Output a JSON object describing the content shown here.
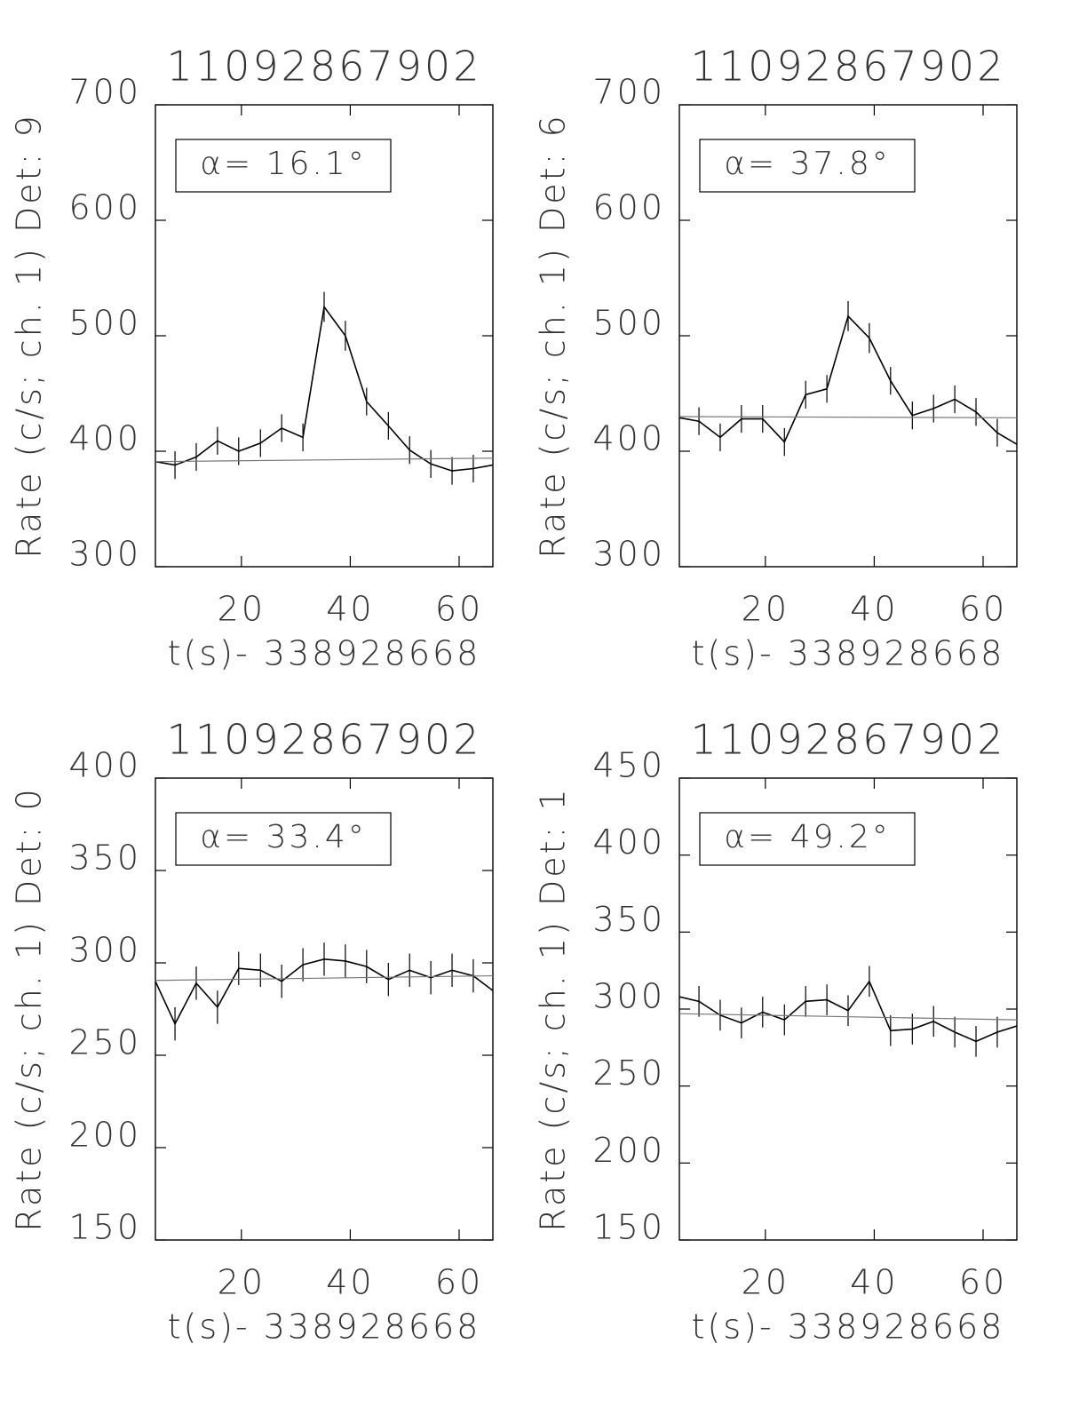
{
  "chart_data": [
    {
      "type": "line",
      "title": "11092867902",
      "y_label": "Rate (c/s; ch. 1) Det: 9",
      "x_label": "t(s)- 338928668",
      "annotation": "α= 16.1°",
      "x": [
        4.2,
        7.8,
        11.7,
        15.6,
        19.5,
        23.5,
        27.4,
        31.3,
        35.2,
        39.1,
        43.0,
        47.0,
        50.9,
        54.8,
        58.7,
        62.6,
        66.2
      ],
      "series": [
        {
          "color": "#000000",
          "values": [
            391,
            388,
            395,
            409,
            400,
            407,
            420,
            412,
            525,
            500,
            443,
            422,
            401,
            389,
            383,
            385,
            388
          ],
          "errors": [
            null,
            12,
            12,
            12,
            12,
            12,
            12,
            12,
            13,
            13,
            12,
            12,
            12,
            12,
            12,
            12,
            null
          ]
        },
        {
          "color": "#777777",
          "x": [
            4.2,
            66.2
          ],
          "values": [
            391,
            394
          ]
        }
      ],
      "xlim": [
        4.2,
        66.2
      ],
      "ylim": [
        300,
        700
      ],
      "xticks": [
        20,
        40,
        60
      ],
      "yticks": [
        300,
        400,
        500,
        600,
        700
      ]
    },
    {
      "type": "line",
      "title": "11092867902",
      "y_label": "Rate (c/s; ch. 1) Det: 6",
      "x_label": "t(s)- 338928668",
      "annotation": "α= 37.8°",
      "x": [
        4.2,
        7.8,
        11.7,
        15.6,
        19.5,
        23.5,
        27.4,
        31.3,
        35.2,
        39.1,
        43.0,
        47.0,
        50.9,
        54.8,
        58.7,
        62.6,
        66.2
      ],
      "series": [
        {
          "color": "#000000",
          "values": [
            429,
            426,
            412,
            428,
            428,
            408,
            449,
            454,
            517,
            498,
            461,
            431,
            437,
            445,
            434,
            416,
            406
          ],
          "errors": [
            null,
            12,
            12,
            12,
            12,
            12,
            12,
            12,
            13,
            13,
            12,
            12,
            12,
            12,
            12,
            12,
            null
          ]
        },
        {
          "color": "#777777",
          "x": [
            4.2,
            66.2
          ],
          "values": [
            430,
            429
          ]
        }
      ],
      "xlim": [
        4.2,
        66.2
      ],
      "ylim": [
        300,
        700
      ],
      "xticks": [
        20,
        40,
        60
      ],
      "yticks": [
        300,
        400,
        500,
        600,
        700
      ]
    },
    {
      "type": "line",
      "title": "11092867902",
      "y_label": "Rate (c/s; ch. 1) Det: 0",
      "x_label": "t(s)- 338928668",
      "annotation": "α= 33.4°",
      "x": [
        4.2,
        7.8,
        11.7,
        15.6,
        19.5,
        23.5,
        27.4,
        31.3,
        35.2,
        39.1,
        43.0,
        47.0,
        50.9,
        54.8,
        58.7,
        62.6,
        66.2
      ],
      "series": [
        {
          "color": "#000000",
          "values": [
            290,
            267,
            289,
            276,
            297,
            296,
            290,
            299,
            302,
            301,
            298,
            291,
            296,
            292,
            296,
            293,
            285
          ],
          "errors": [
            null,
            9,
            9,
            9,
            9,
            9,
            9,
            9,
            9,
            9,
            9,
            9,
            9,
            9,
            9,
            9,
            null
          ]
        },
        {
          "color": "#777777",
          "x": [
            4.2,
            66.2
          ],
          "values": [
            290.5,
            293
          ]
        }
      ],
      "xlim": [
        4.2,
        66.2
      ],
      "ylim": [
        150,
        400
      ],
      "xticks": [
        20,
        40,
        60
      ],
      "yticks": [
        150,
        200,
        250,
        300,
        350,
        400
      ]
    },
    {
      "type": "line",
      "title": "11092867902",
      "y_label": "Rate (c/s; ch. 1) Det: 1",
      "x_label": "t(s)- 338928668",
      "annotation": "α= 49.2°",
      "x": [
        4.2,
        7.8,
        11.7,
        15.6,
        19.5,
        23.5,
        27.4,
        31.3,
        35.2,
        39.1,
        43.0,
        47.0,
        50.9,
        54.8,
        58.7,
        62.6,
        66.2
      ],
      "series": [
        {
          "color": "#000000",
          "values": [
            308,
            305,
            296,
            291,
            298,
            293,
            305,
            306,
            299,
            318,
            286,
            287,
            292,
            285,
            279,
            285,
            289
          ],
          "errors": [
            null,
            10,
            10,
            10,
            10,
            10,
            10,
            10,
            10,
            10,
            10,
            10,
            10,
            10,
            10,
            10,
            null
          ]
        },
        {
          "color": "#777777",
          "x": [
            4.2,
            66.2
          ],
          "values": [
            297,
            293
          ]
        }
      ],
      "xlim": [
        4.2,
        66.2
      ],
      "ylim": [
        150,
        450
      ],
      "xticks": [
        20,
        40,
        60
      ],
      "yticks": [
        150,
        200,
        250,
        300,
        350,
        400,
        450
      ]
    }
  ]
}
